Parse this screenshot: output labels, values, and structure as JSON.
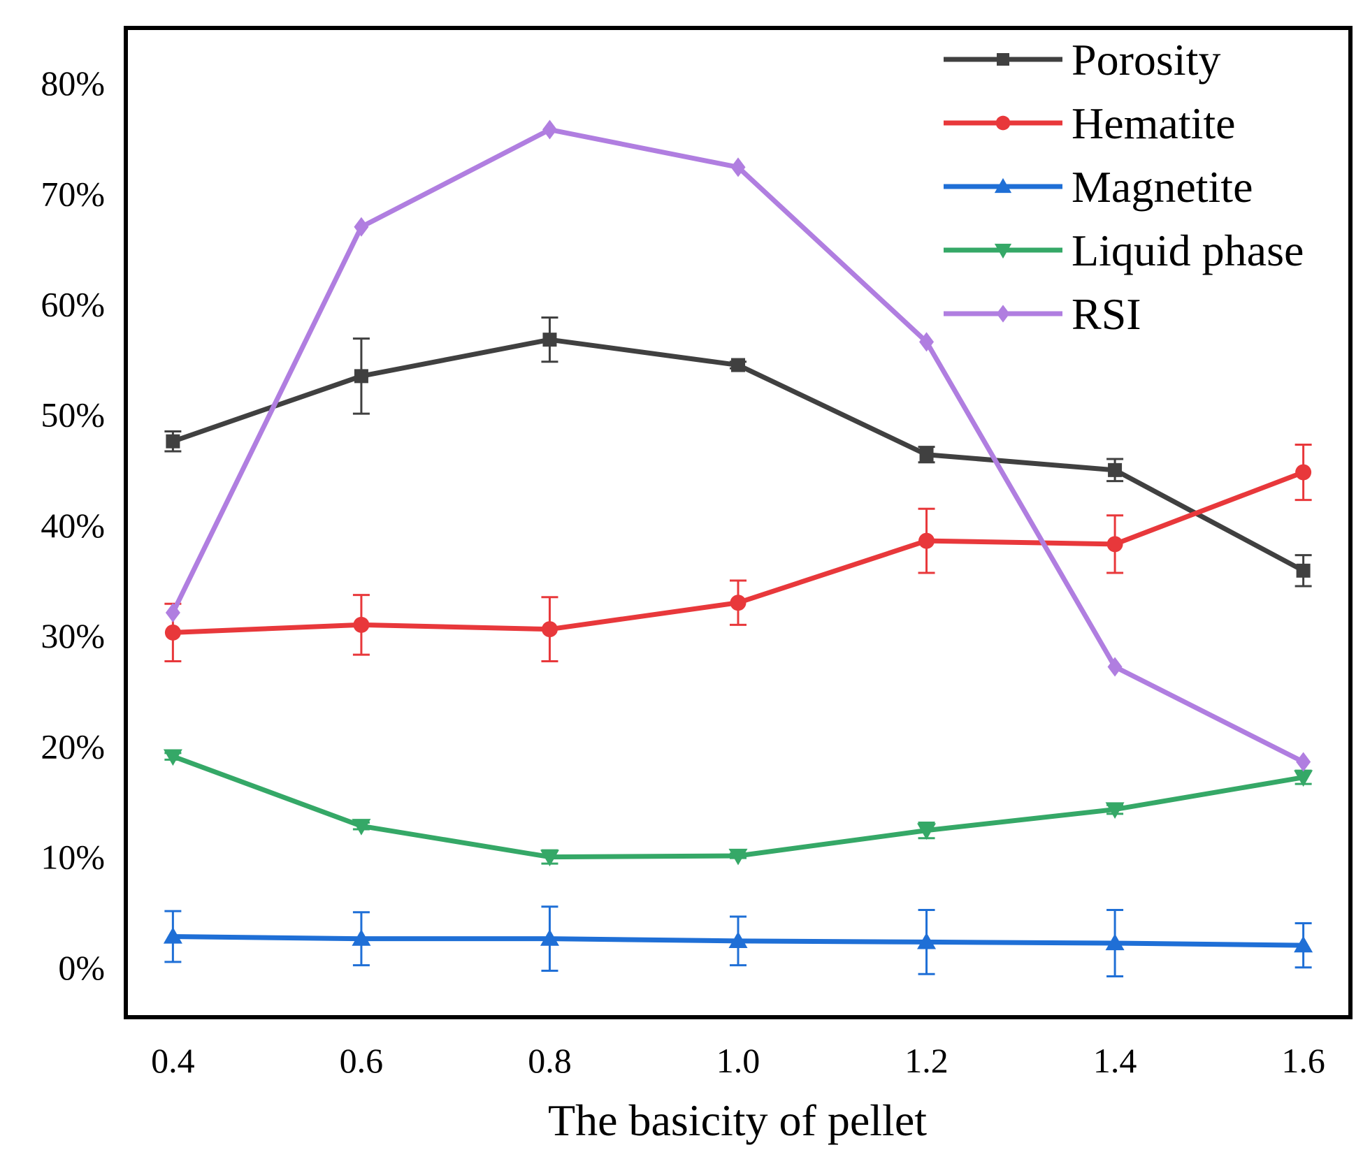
{
  "chart_data": {
    "type": "line",
    "title": "",
    "xlabel": "The basicity of pellet",
    "ylabel": "",
    "categories": [
      "0.4",
      "0.6",
      "0.8",
      "1.0",
      "1.2",
      "1.4",
      "1.6"
    ],
    "x": [
      0.4,
      0.6,
      0.8,
      1.0,
      1.2,
      1.4,
      1.6
    ],
    "xlim": [
      0.35,
      1.65
    ],
    "ylim": [
      -4.5,
      85
    ],
    "yticks": [
      0,
      10,
      20,
      30,
      40,
      50,
      60,
      70,
      80
    ],
    "ytick_labels": [
      "0%",
      "10%",
      "20%",
      "30%",
      "40%",
      "50%",
      "60%",
      "70%",
      "80%"
    ],
    "grid": false,
    "legend_position": "top-right",
    "series": [
      {
        "name": "Porosity",
        "color": "#404040",
        "marker": "square",
        "values": [
          47.6,
          53.5,
          56.8,
          54.5,
          46.4,
          45.0,
          35.9
        ],
        "errors": [
          0.9,
          3.4,
          2.0,
          0.3,
          0.7,
          1.0,
          1.4
        ]
      },
      {
        "name": "Hematite",
        "color": "#e8383b",
        "marker": "circle",
        "values": [
          30.3,
          31.0,
          30.6,
          33.0,
          38.6,
          38.3,
          44.8
        ],
        "errors": [
          2.6,
          2.7,
          2.9,
          2.0,
          2.9,
          2.6,
          2.5
        ]
      },
      {
        "name": "Magnetite",
        "color": "#1f6fd6",
        "marker": "triangle-up",
        "values": [
          2.8,
          2.6,
          2.6,
          2.4,
          2.3,
          2.2,
          2.0
        ],
        "errors": [
          2.3,
          2.4,
          2.9,
          2.2,
          2.9,
          3.0,
          2.0
        ]
      },
      {
        "name": "Liquid phase",
        "color": "#35a867",
        "marker": "triangle-down",
        "values": [
          19.1,
          12.8,
          10.0,
          10.1,
          12.4,
          14.3,
          17.2
        ],
        "errors": [
          0.3,
          0.3,
          0.6,
          0.2,
          0.7,
          0.4,
          0.6
        ]
      },
      {
        "name": "RSI",
        "color": "#b07ee0",
        "marker": "diamond",
        "values": [
          32.1,
          67.0,
          75.8,
          72.4,
          56.6,
          27.2,
          18.6
        ],
        "errors": [
          0,
          0,
          0,
          0,
          0,
          0,
          0
        ]
      }
    ]
  }
}
